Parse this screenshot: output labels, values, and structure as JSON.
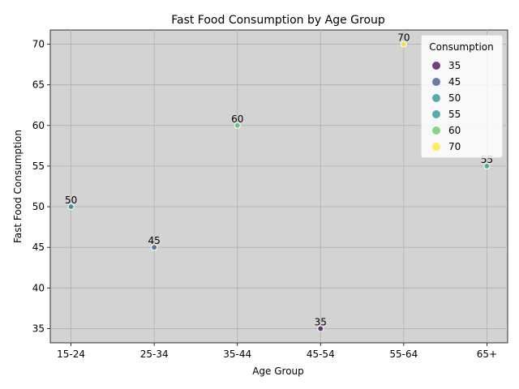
{
  "chart_data": {
    "type": "scatter",
    "title": "Fast Food Consumption by Age Group",
    "xlabel": "Age Group",
    "ylabel": "Fast Food Consumption",
    "categories": [
      "15-24",
      "25-34",
      "35-44",
      "45-54",
      "55-64",
      "65+"
    ],
    "values": [
      50,
      45,
      60,
      35,
      70,
      55
    ],
    "data_labels": [
      "50",
      "45",
      "60",
      "35",
      "70",
      "55"
    ],
    "ylim": [
      33.25,
      71.75
    ],
    "yticks": [
      "35",
      "40",
      "45",
      "50",
      "55",
      "60",
      "65",
      "70"
    ],
    "grid": true,
    "plot_background": "#d3d3d3",
    "colormap": "viridis",
    "legend": {
      "title": "Consumption",
      "placement": "top-right",
      "entries": [
        "35",
        "45",
        "50",
        "55",
        "60",
        "70"
      ],
      "colors": [
        "#440154",
        "#3b528b",
        "#21918c",
        "#21918c",
        "#5ec962",
        "#fde725"
      ]
    }
  }
}
